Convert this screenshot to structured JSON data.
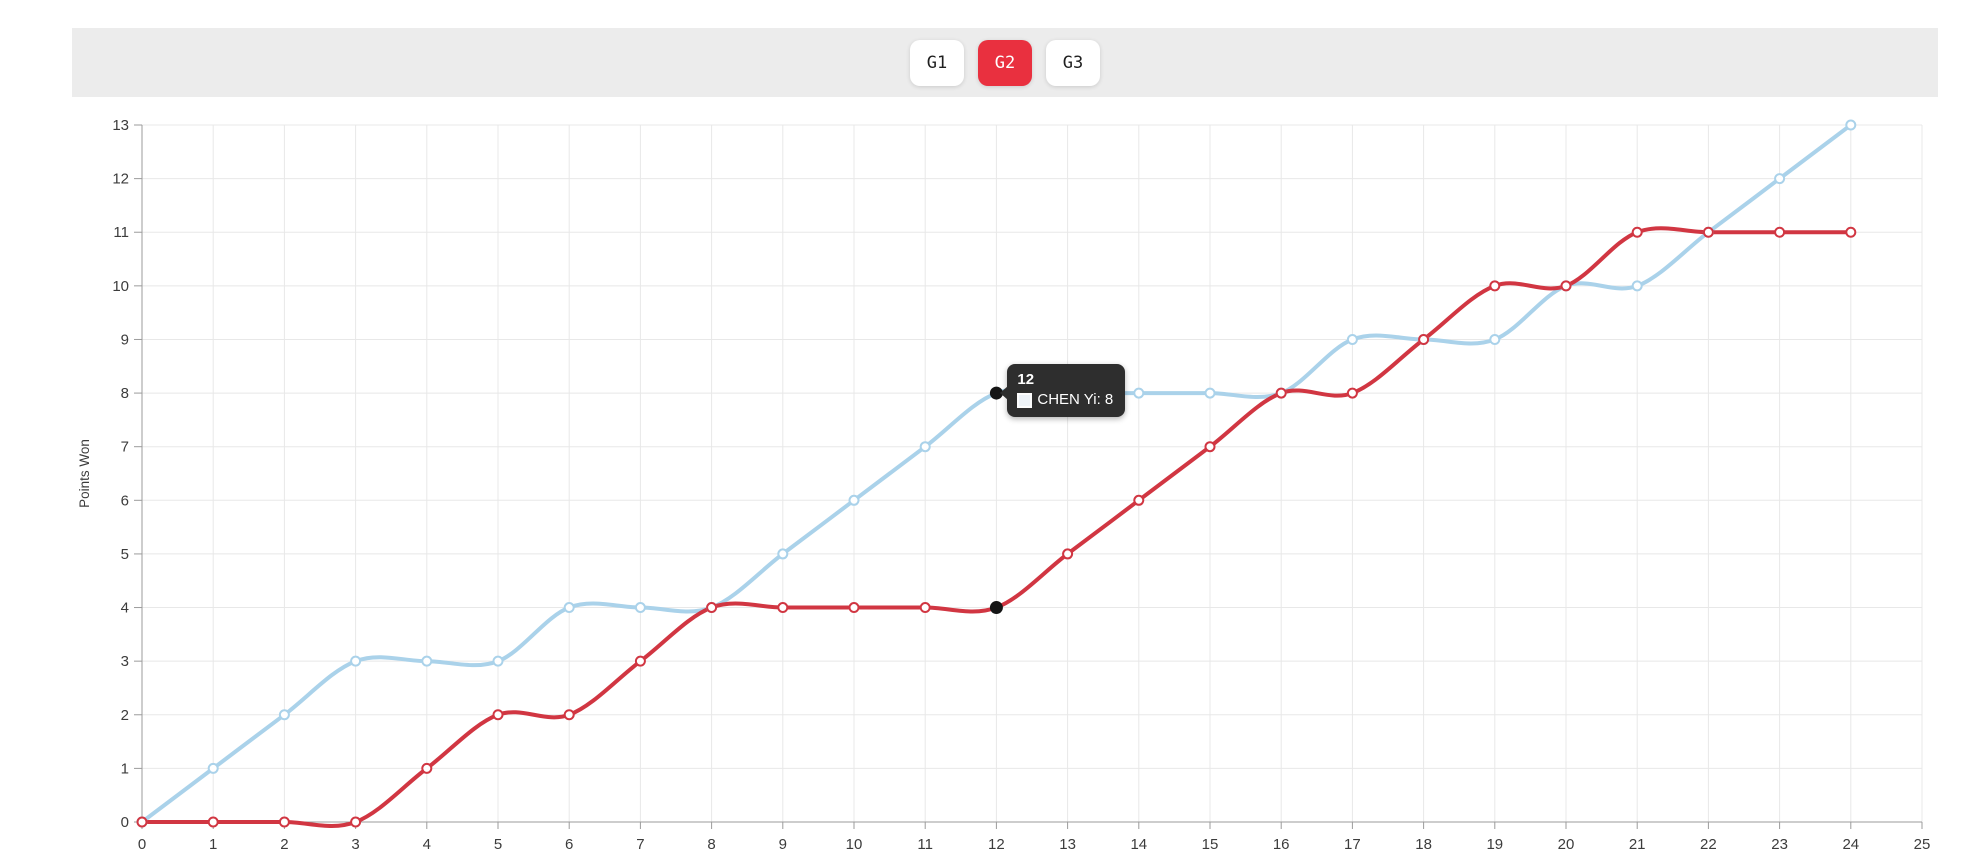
{
  "tabs": {
    "items": [
      {
        "label": "G1",
        "active": false
      },
      {
        "label": "G2",
        "active": true
      },
      {
        "label": "G3",
        "active": false
      }
    ],
    "active_color": "#e9303f"
  },
  "chart_data": {
    "type": "line",
    "title": "",
    "xlabel": "",
    "ylabel": "Points Won",
    "xlim": [
      0,
      25
    ],
    "ylim": [
      0,
      13
    ],
    "xticks": [
      0,
      1,
      2,
      3,
      4,
      5,
      6,
      7,
      8,
      9,
      10,
      11,
      12,
      13,
      14,
      15,
      16,
      17,
      18,
      19,
      20,
      21,
      22,
      23,
      24,
      25
    ],
    "yticks": [
      0,
      1,
      2,
      3,
      4,
      5,
      6,
      7,
      8,
      9,
      10,
      11,
      12,
      13
    ],
    "grid": true,
    "legend_position": "none",
    "x": [
      0,
      1,
      2,
      3,
      4,
      5,
      6,
      7,
      8,
      9,
      10,
      11,
      12,
      13,
      14,
      15,
      16,
      17,
      18,
      19,
      20,
      21,
      22,
      23,
      24
    ],
    "series": [
      {
        "name": "CHEN Yi",
        "color": "#aad2ea",
        "values": [
          0,
          1,
          2,
          3,
          3,
          3,
          4,
          4,
          4,
          5,
          6,
          7,
          8,
          8,
          8,
          8,
          8,
          9,
          9,
          9,
          10,
          10,
          11,
          12,
          13
        ]
      },
      {
        "name": "",
        "color": "#d13642",
        "values": [
          0,
          0,
          0,
          0,
          1,
          2,
          2,
          3,
          4,
          4,
          4,
          4,
          4,
          5,
          6,
          7,
          8,
          8,
          9,
          10,
          10,
          11,
          11,
          11,
          11
        ]
      }
    ]
  },
  "tooltip": {
    "title": "12",
    "entry_label": "CHEN Yi: 8",
    "series_name": "CHEN Yi",
    "value": 8,
    "point_index": 12,
    "swatch_color": "#eef3f8",
    "background": "#2e2e2e",
    "highlight_dot_color": "#151515"
  },
  "style_colors": {
    "bar_background": "#ececec",
    "grid": "#e8e8e8",
    "axis": "#9b9b9b",
    "tick_text": "#3c3c3c"
  }
}
